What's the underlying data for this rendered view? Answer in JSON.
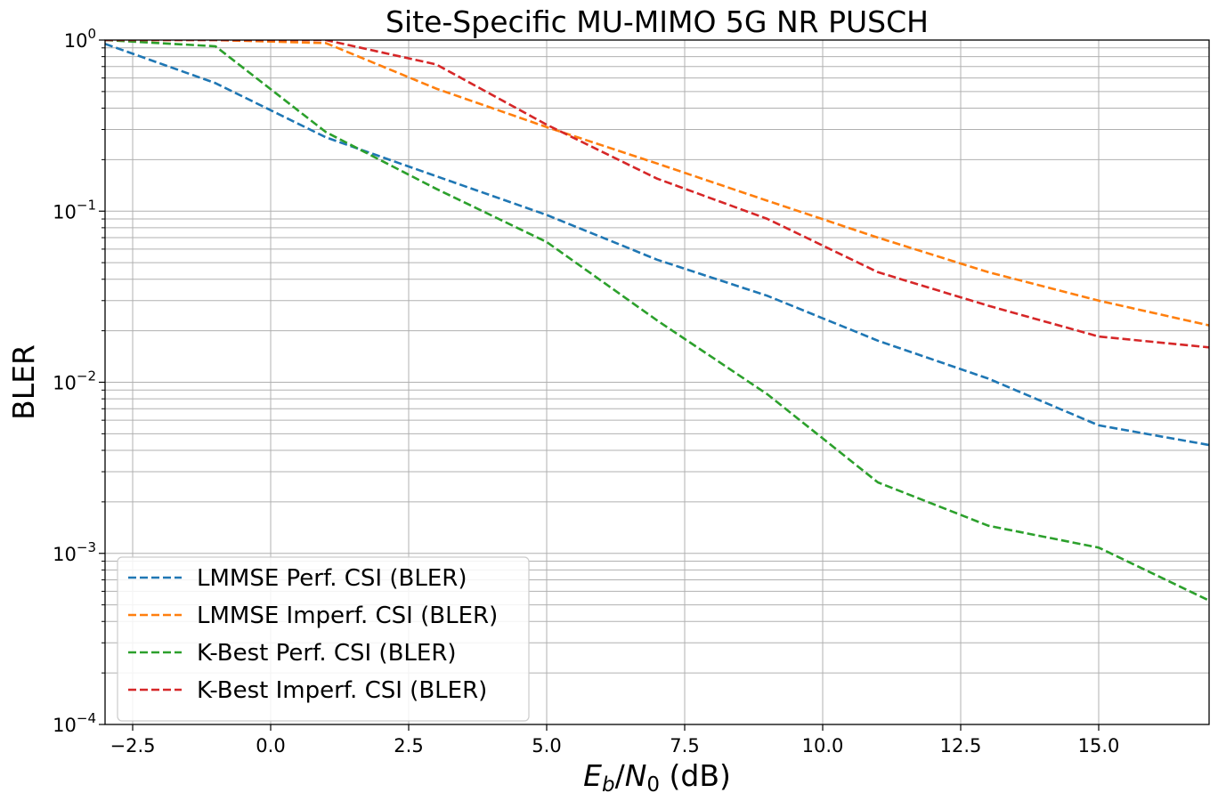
{
  "chart_data": {
    "type": "line",
    "title": "Site-Specific MU-MIMO 5G NR PUSCH",
    "xlabel": {
      "var": "E",
      "sub": "b",
      "slash": "/",
      "var2": "N",
      "sub2": "0",
      "unit": " (dB)"
    },
    "ylabel": "BLER",
    "xlim": [
      -3,
      17
    ],
    "ylim": [
      0.0001,
      1
    ],
    "yscale": "log",
    "grid": true,
    "grid_minor": true,
    "legend_position": "lower-left",
    "x_ticks": [
      {
        "value": -2.5,
        "label": "−2.5"
      },
      {
        "value": 0,
        "label": "0.0"
      },
      {
        "value": 2.5,
        "label": "2.5"
      },
      {
        "value": 5,
        "label": "5.0"
      },
      {
        "value": 7.5,
        "label": "7.5"
      },
      {
        "value": 10,
        "label": "10.0"
      },
      {
        "value": 12.5,
        "label": "12.5"
      },
      {
        "value": 15,
        "label": "15.0"
      }
    ],
    "y_ticks": [
      {
        "value": 1,
        "base": "10",
        "exp": "0"
      },
      {
        "value": 0.1,
        "base": "10",
        "exp": "−1"
      },
      {
        "value": 0.01,
        "base": "10",
        "exp": "−2"
      },
      {
        "value": 0.001,
        "base": "10",
        "exp": "−3"
      },
      {
        "value": 0.0001,
        "base": "10",
        "exp": "−4"
      }
    ],
    "x": [
      -3,
      -1,
      1,
      3,
      5,
      7,
      9,
      11,
      13,
      15,
      17
    ],
    "series": [
      {
        "name": "LMMSE Perf. CSI (BLER)",
        "color": "#1f77b4",
        "values": [
          0.95,
          0.56,
          0.27,
          0.16,
          0.095,
          0.052,
          0.032,
          0.0175,
          0.0105,
          0.0056,
          0.0043
        ]
      },
      {
        "name": "LMMSE Imperf. CSI (BLER)",
        "color": "#ff7f0e",
        "values": [
          1.0,
          1.0,
          0.96,
          0.52,
          0.31,
          0.19,
          0.115,
          0.07,
          0.044,
          0.03,
          0.0215
        ]
      },
      {
        "name": "K-Best Perf. CSI (BLER)",
        "color": "#2ca02c",
        "values": [
          1.0,
          0.92,
          0.29,
          0.135,
          0.066,
          0.023,
          0.0085,
          0.0026,
          0.00145,
          0.00108,
          0.00053
        ]
      },
      {
        "name": "K-Best Imperf. CSI (BLER)",
        "color": "#d62728",
        "values": [
          1.0,
          1.0,
          1.0,
          0.72,
          0.32,
          0.155,
          0.09,
          0.044,
          0.028,
          0.0185,
          0.016
        ]
      }
    ]
  }
}
